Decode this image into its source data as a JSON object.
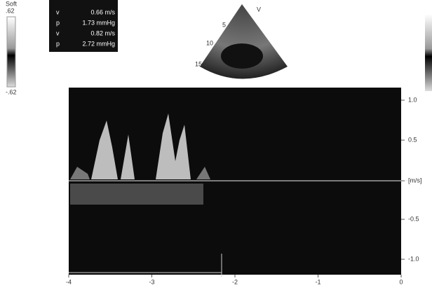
{
  "scale": {
    "title": "Soft",
    "top": ".62",
    "bottom": "-.62"
  },
  "measurements": [
    {
      "label": "v",
      "value": "0.66 m/s"
    },
    {
      "label": "p",
      "value": "1.73 mmHg"
    },
    {
      "label": "v",
      "value": "0.82 m/s"
    },
    {
      "label": "p",
      "value": "2.72 mmHg"
    }
  ],
  "sector": {
    "mode": "V",
    "depths": [
      "5",
      "10",
      "15"
    ]
  },
  "spectrum": {
    "velocity_ticks": [
      "1.0",
      "0.5",
      "[m/s]",
      "-0.5",
      "-1.0"
    ],
    "time_ticks": [
      "-4",
      "-3",
      "-2",
      "-1",
      "0"
    ]
  }
}
